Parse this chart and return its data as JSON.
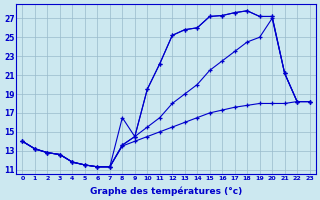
{
  "xlabel": "Graphe des températures (°c)",
  "bg_color": "#cce8f0",
  "line_color": "#0000cc",
  "grid_color": "#99bbcc",
  "xlim": [
    -0.5,
    23.5
  ],
  "ylim": [
    10.5,
    28.5
  ],
  "xticks": [
    0,
    1,
    2,
    3,
    4,
    5,
    6,
    7,
    8,
    9,
    10,
    11,
    12,
    13,
    14,
    15,
    16,
    17,
    18,
    19,
    20,
    21,
    22,
    23
  ],
  "yticks": [
    11,
    13,
    15,
    17,
    19,
    21,
    23,
    25,
    27
  ],
  "curve_tmax_x": [
    0,
    1,
    2,
    3,
    4,
    5,
    6,
    7,
    8,
    9,
    10,
    11,
    12,
    13,
    14,
    15,
    16,
    17,
    18,
    19,
    20,
    21,
    22,
    23
  ],
  "curve_tmax_y": [
    14.0,
    13.2,
    12.8,
    12.6,
    11.8,
    11.5,
    11.3,
    11.3,
    13.6,
    14.5,
    19.5,
    22.2,
    25.2,
    25.8,
    26.0,
    27.2,
    27.3,
    27.6,
    27.8,
    27.2,
    27.2,
    21.2,
    18.2,
    18.2
  ],
  "curve_tmax2_x": [
    0,
    1,
    2,
    3,
    4,
    5,
    6,
    7,
    8,
    9,
    10,
    11,
    12,
    13,
    14,
    15,
    16,
    17,
    18,
    19,
    20,
    21,
    22,
    23
  ],
  "curve_tmax2_y": [
    14.0,
    13.2,
    12.8,
    12.6,
    11.8,
    11.5,
    11.3,
    11.3,
    16.5,
    14.5,
    19.5,
    22.2,
    25.2,
    25.8,
    26.0,
    27.2,
    27.3,
    27.6,
    27.8,
    27.2,
    27.2,
    21.2,
    18.2,
    18.2
  ],
  "curve_tmid_x": [
    0,
    1,
    2,
    3,
    4,
    5,
    6,
    7,
    8,
    9,
    10,
    11,
    12,
    13,
    14,
    15,
    16,
    17,
    18,
    19,
    20,
    21,
    22,
    23
  ],
  "curve_tmid_y": [
    14.0,
    13.2,
    12.8,
    12.6,
    11.8,
    11.5,
    11.3,
    11.3,
    13.6,
    14.5,
    15.5,
    16.5,
    18.0,
    19.0,
    20.0,
    21.5,
    22.5,
    23.5,
    24.5,
    25.0,
    27.0,
    21.2,
    18.2,
    18.2
  ],
  "curve_tmin_x": [
    0,
    1,
    2,
    3,
    4,
    5,
    6,
    7,
    8,
    9,
    10,
    11,
    12,
    13,
    14,
    15,
    16,
    17,
    18,
    19,
    20,
    21,
    22,
    23
  ],
  "curve_tmin_y": [
    14.0,
    13.2,
    12.8,
    12.6,
    11.8,
    11.5,
    11.3,
    11.3,
    13.5,
    14.0,
    14.5,
    15.0,
    15.5,
    16.0,
    16.5,
    17.0,
    17.3,
    17.6,
    17.8,
    18.0,
    18.0,
    18.0,
    18.2,
    18.2
  ]
}
